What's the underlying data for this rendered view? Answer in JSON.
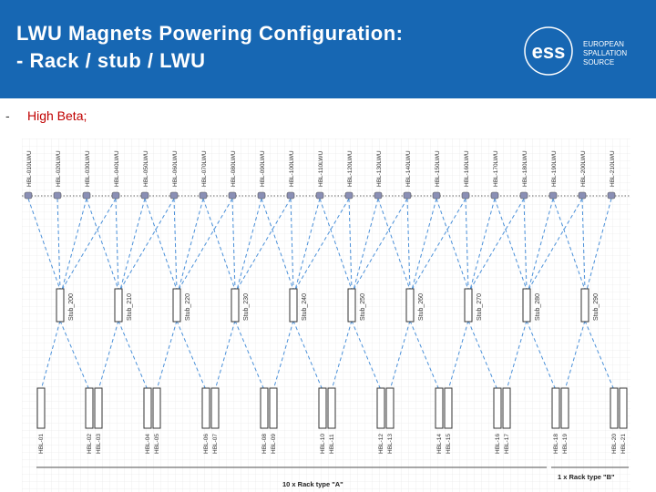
{
  "header": {
    "title_line1": "LWU Magnets Powering Configuration:",
    "title_line2": "- Rack / stub / LWU"
  },
  "logo": {
    "mark": "ess",
    "lines": [
      "EUROPEAN",
      "SPALLATION",
      "SOURCE"
    ]
  },
  "bullet": {
    "marker": "-",
    "text": "High Beta;"
  },
  "diagram": {
    "lwus": [
      "HBL-010LWU",
      "HBL-020LWU",
      "HBL-030LWU",
      "HBL-040LWU",
      "HBL-050LWU",
      "HBL-060LWU",
      "HBL-070LWU",
      "HBL-080LWU",
      "HBL-090LWU",
      "HBL-100LWU",
      "HBL-110LWU",
      "HBL-120LWU",
      "HBL-130LWU",
      "HBL-140LWU",
      "HBL-150LWU",
      "HBL-160LWU",
      "HBL-170LWU",
      "HBL-180LWU",
      "HBL-190LWU",
      "HBL-200LWU",
      "HBL-210LWU"
    ],
    "stubs": [
      "Stub_200",
      "Stub_210",
      "Stub_220",
      "Stub_230",
      "Stub_240",
      "Stub_250",
      "Stub_260",
      "Stub_270",
      "Stub_280",
      "Stub_290"
    ],
    "racks": [
      "HBL-01",
      "HBL-02",
      "HBL-03",
      "HBL-04",
      "HBL-05",
      "HBL-06",
      "HBL-07",
      "HBL-08",
      "HBL-09",
      "HBL-10",
      "HBL-11",
      "HBL-12",
      "HBL-13",
      "HBL-14",
      "HBL-15",
      "HBL-16",
      "HBL-17",
      "HBL-18",
      "HBL-19",
      "HBL-20",
      "HBL-21"
    ],
    "rack_notes": [
      "10 x Rack type \"A\"",
      "1 x Rack type \"B\""
    ]
  }
}
